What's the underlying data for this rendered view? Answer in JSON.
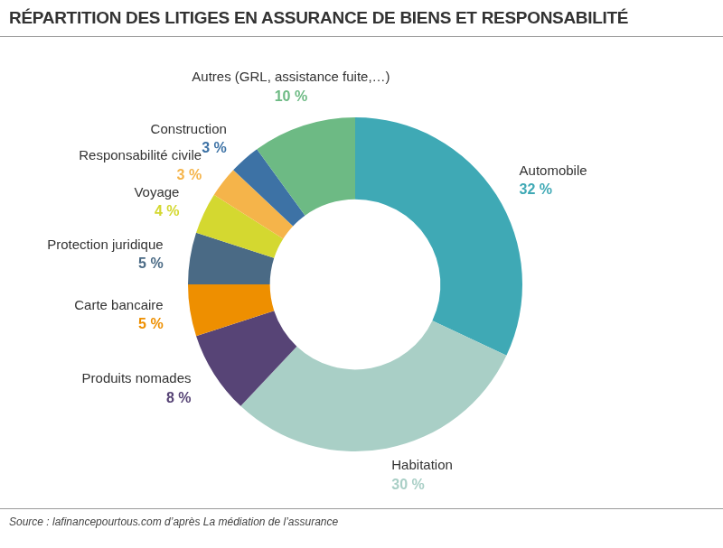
{
  "chart_data": {
    "type": "doughnut",
    "title": "RÉPARTITION DES LITIGES EN ASSURANCE DE BIENS ET RESPONSABILITÉ",
    "source": "Source : lafinancepourtous.com d’après La médiation de l’assurance",
    "categories": [
      "Automobile",
      "Habitation",
      "Produits nomades",
      "Carte bancaire",
      "Protection juridique",
      "Voyage",
      "Responsabilité civile",
      "Construction",
      "Autres (GRL, assistance fuite,…)"
    ],
    "values": [
      32,
      30,
      8,
      5,
      5,
      4,
      3,
      3,
      10
    ],
    "value_labels": [
      "32 %",
      "30 %",
      "8 %",
      "5 %",
      "5 %",
      "4 %",
      "3 %",
      "3 %",
      "10 %"
    ],
    "colors": [
      "#3fa9b5",
      "#a9cfc6",
      "#574476",
      "#ee8f00",
      "#4a6a85",
      "#d4d830",
      "#f5b44a",
      "#3d72a5",
      "#6dba84"
    ],
    "data_labels": true
  }
}
